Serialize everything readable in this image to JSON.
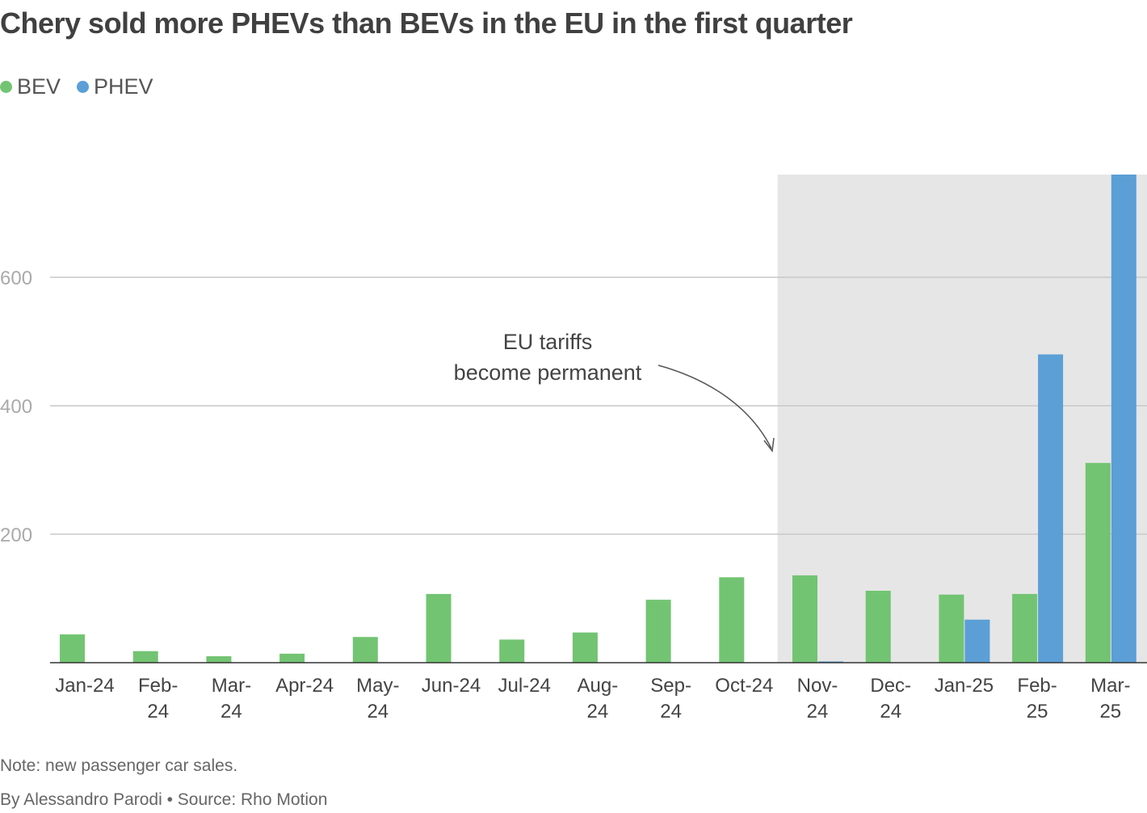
{
  "title": "Chery sold more PHEVs than BEVs in the EU in the first quarter",
  "note": "Note: new passenger car sales.",
  "credit": "By Alessandro Parodi • Source: Rho Motion",
  "chart_data": {
    "type": "bar",
    "title": "Chery sold more PHEVs than BEVs in the EU in the first quarter",
    "categories": [
      "Jan-24",
      "Feb-24",
      "Mar-24",
      "Apr-24",
      "May-24",
      "Jun-24",
      "Jul-24",
      "Aug-24",
      "Sep-24",
      "Oct-24",
      "Nov-24",
      "Dec-24",
      "Jan-25",
      "Feb-25",
      "Mar-25"
    ],
    "series": [
      {
        "name": "BEV",
        "color": "#72c472",
        "values": [
          44,
          18,
          10,
          14,
          40,
          107,
          36,
          47,
          98,
          133,
          136,
          112,
          106,
          107,
          311
        ]
      },
      {
        "name": "PHEV",
        "color": "#5b9fd6",
        "values": [
          0,
          0,
          0,
          0,
          0,
          0,
          0,
          0,
          0,
          0,
          2,
          0,
          67,
          480,
          760
        ]
      }
    ],
    "yticks": [
      200,
      400,
      600
    ],
    "ylim": [
      0,
      760
    ],
    "grid": true,
    "legend_position": "top-left",
    "shaded_region": {
      "from": "Nov-24",
      "to": "Mar-25",
      "color": "#e6e6e6"
    },
    "annotation": {
      "lines": [
        "EU tariffs",
        "become permanent"
      ],
      "points_to": "Nov-24"
    }
  }
}
